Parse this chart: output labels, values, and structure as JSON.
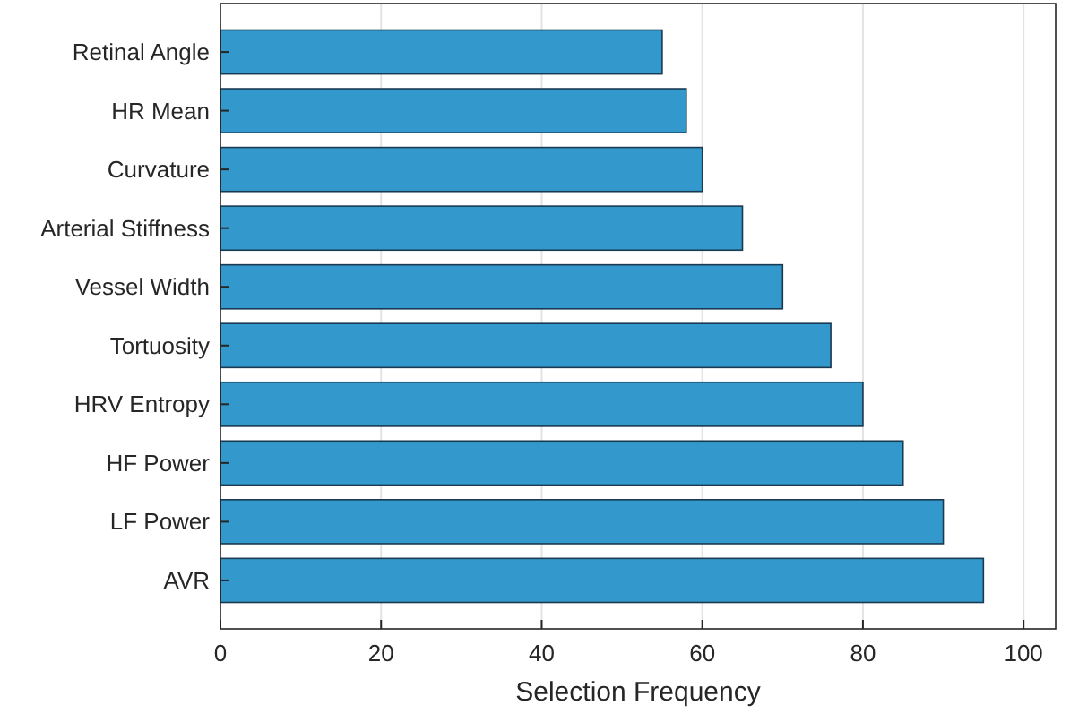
{
  "chart_data": {
    "type": "bar",
    "orientation": "horizontal",
    "xlabel": "Selection Frequency",
    "categories": [
      "Retinal Angle",
      "HR Mean",
      "Curvature",
      "Arterial Stiffness",
      "Vessel Width",
      "Tortuosity",
      "HRV Entropy",
      "HF Power",
      "LF Power",
      "AVR"
    ],
    "values": [
      55,
      58,
      60,
      65,
      70,
      76,
      80,
      85,
      90,
      95
    ],
    "color": "#3399cc",
    "xlim": [
      0,
      104
    ],
    "xticks": [
      0,
      20,
      40,
      60,
      80,
      100
    ],
    "grid": "x"
  }
}
